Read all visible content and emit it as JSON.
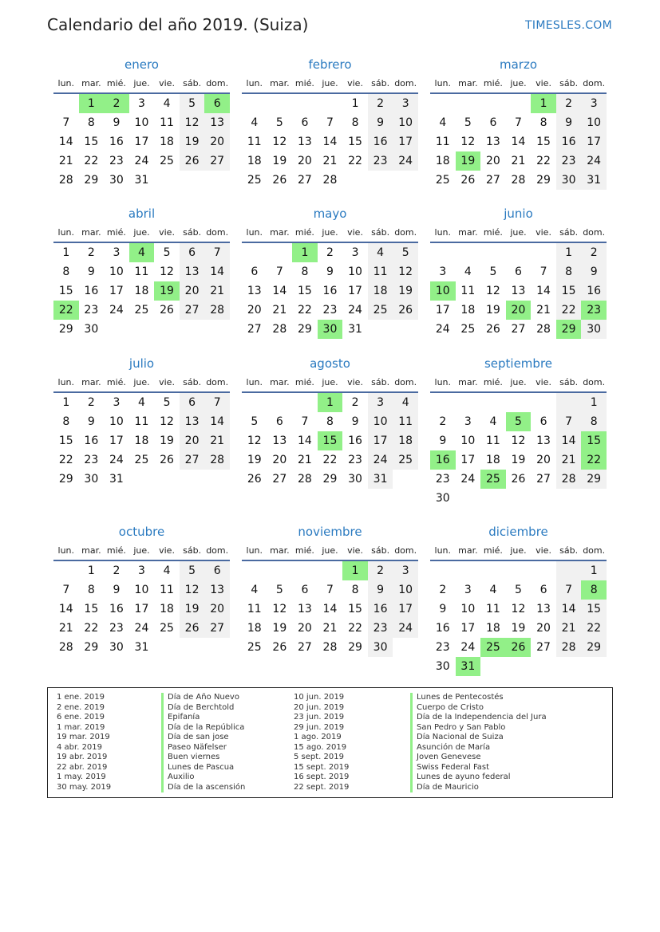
{
  "title": "Calendario del año 2019. (Suiza)",
  "brand": "TIMESLES.COM",
  "year": 2019,
  "weekdays": [
    "lun.",
    "mar.",
    "mié.",
    "jue.",
    "vie.",
    "sáb.",
    "dom."
  ],
  "holiday_color": "#92f088",
  "months": [
    {
      "name": "enero",
      "holidays": [
        1,
        2,
        6
      ]
    },
    {
      "name": "febrero",
      "holidays": []
    },
    {
      "name": "marzo",
      "holidays": [
        1,
        19
      ]
    },
    {
      "name": "abril",
      "holidays": [
        4,
        19,
        22
      ]
    },
    {
      "name": "mayo",
      "holidays": [
        1,
        30
      ]
    },
    {
      "name": "junio",
      "holidays": [
        10,
        20,
        23,
        29
      ]
    },
    {
      "name": "julio",
      "holidays": []
    },
    {
      "name": "agosto",
      "holidays": [
        1,
        15
      ]
    },
    {
      "name": "septiembre",
      "holidays": [
        5,
        15,
        16,
        22,
        25
      ]
    },
    {
      "name": "octubre",
      "holidays": []
    },
    {
      "name": "noviembre",
      "holidays": [
        1
      ]
    },
    {
      "name": "diciembre",
      "holidays": [
        8,
        25,
        26,
        31
      ]
    }
  ],
  "legend": [
    {
      "date": "1 ene. 2019",
      "name": "Día de Año Nuevo"
    },
    {
      "date": "2 ene. 2019",
      "name": "Día de Berchtold"
    },
    {
      "date": "6 ene. 2019",
      "name": "Epifanía"
    },
    {
      "date": "1 mar. 2019",
      "name": "Día de la República"
    },
    {
      "date": "19 mar. 2019",
      "name": "Día de san jose"
    },
    {
      "date": "4 abr. 2019",
      "name": "Paseo Näfelser"
    },
    {
      "date": "19 abr. 2019",
      "name": "Buen viernes"
    },
    {
      "date": "22 abr. 2019",
      "name": "Lunes de Pascua"
    },
    {
      "date": "1 may. 2019",
      "name": "Auxilio"
    },
    {
      "date": "30 may. 2019",
      "name": "Día de la ascensión"
    },
    {
      "date": "10 jun. 2019",
      "name": "Lunes de Pentecostés"
    },
    {
      "date": "20 jun. 2019",
      "name": "Cuerpo de Cristo"
    },
    {
      "date": "23 jun. 2019",
      "name": "Día de la Independencia del Jura"
    },
    {
      "date": "29 jun. 2019",
      "name": "San Pedro y San Pablo"
    },
    {
      "date": "1 ago. 2019",
      "name": "Día Nacional de Suiza"
    },
    {
      "date": "15 ago. 2019",
      "name": "Asunción de María"
    },
    {
      "date": "5 sept. 2019",
      "name": "Joven Genevese"
    },
    {
      "date": "15 sept. 2019",
      "name": "Swiss Federal Fast"
    },
    {
      "date": "16 sept. 2019",
      "name": "Lunes de ayuno federal"
    },
    {
      "date": "22 sept. 2019",
      "name": "Día de Mauricio"
    }
  ]
}
